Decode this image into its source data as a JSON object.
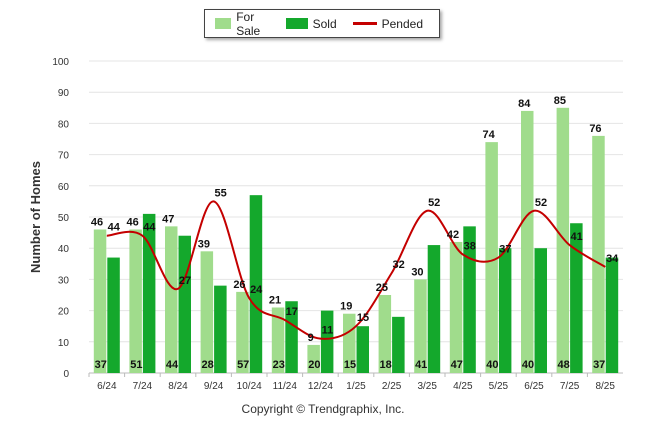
{
  "chart_data": {
    "type": "bar",
    "categories": [
      "6/24",
      "7/24",
      "8/24",
      "9/24",
      "10/24",
      "11/24",
      "12/24",
      "1/25",
      "2/25",
      "3/25",
      "4/25",
      "5/25",
      "6/25",
      "7/25",
      "8/25"
    ],
    "series": [
      {
        "name": "For Sale",
        "type": "bar",
        "color": "#a0dc8c",
        "values": [
          46,
          46,
          47,
          39,
          26,
          21,
          9,
          19,
          25,
          30,
          42,
          74,
          84,
          85,
          76
        ]
      },
      {
        "name": "Sold",
        "type": "bar",
        "color": "#14a82c",
        "values": [
          37,
          51,
          44,
          28,
          57,
          23,
          20,
          15,
          18,
          41,
          47,
          40,
          40,
          48,
          37
        ]
      },
      {
        "name": "Pended",
        "type": "line",
        "color": "#c40000",
        "values": [
          44,
          44,
          27,
          55,
          24,
          17,
          11,
          15,
          32,
          52,
          38,
          37,
          52,
          41,
          34
        ]
      }
    ],
    "ylabel": "Number of Homes",
    "xlabel": "",
    "ylim": [
      0,
      100
    ],
    "yticks": [
      0,
      10,
      20,
      30,
      40,
      50,
      60,
      70,
      80,
      90,
      100
    ],
    "grid": true,
    "legend_position": "top-center"
  },
  "legend": {
    "for_sale": "For Sale",
    "sold": "Sold",
    "pended": "Pended"
  },
  "footer": {
    "copyright": "Copyright © Trendgraphix, Inc."
  }
}
